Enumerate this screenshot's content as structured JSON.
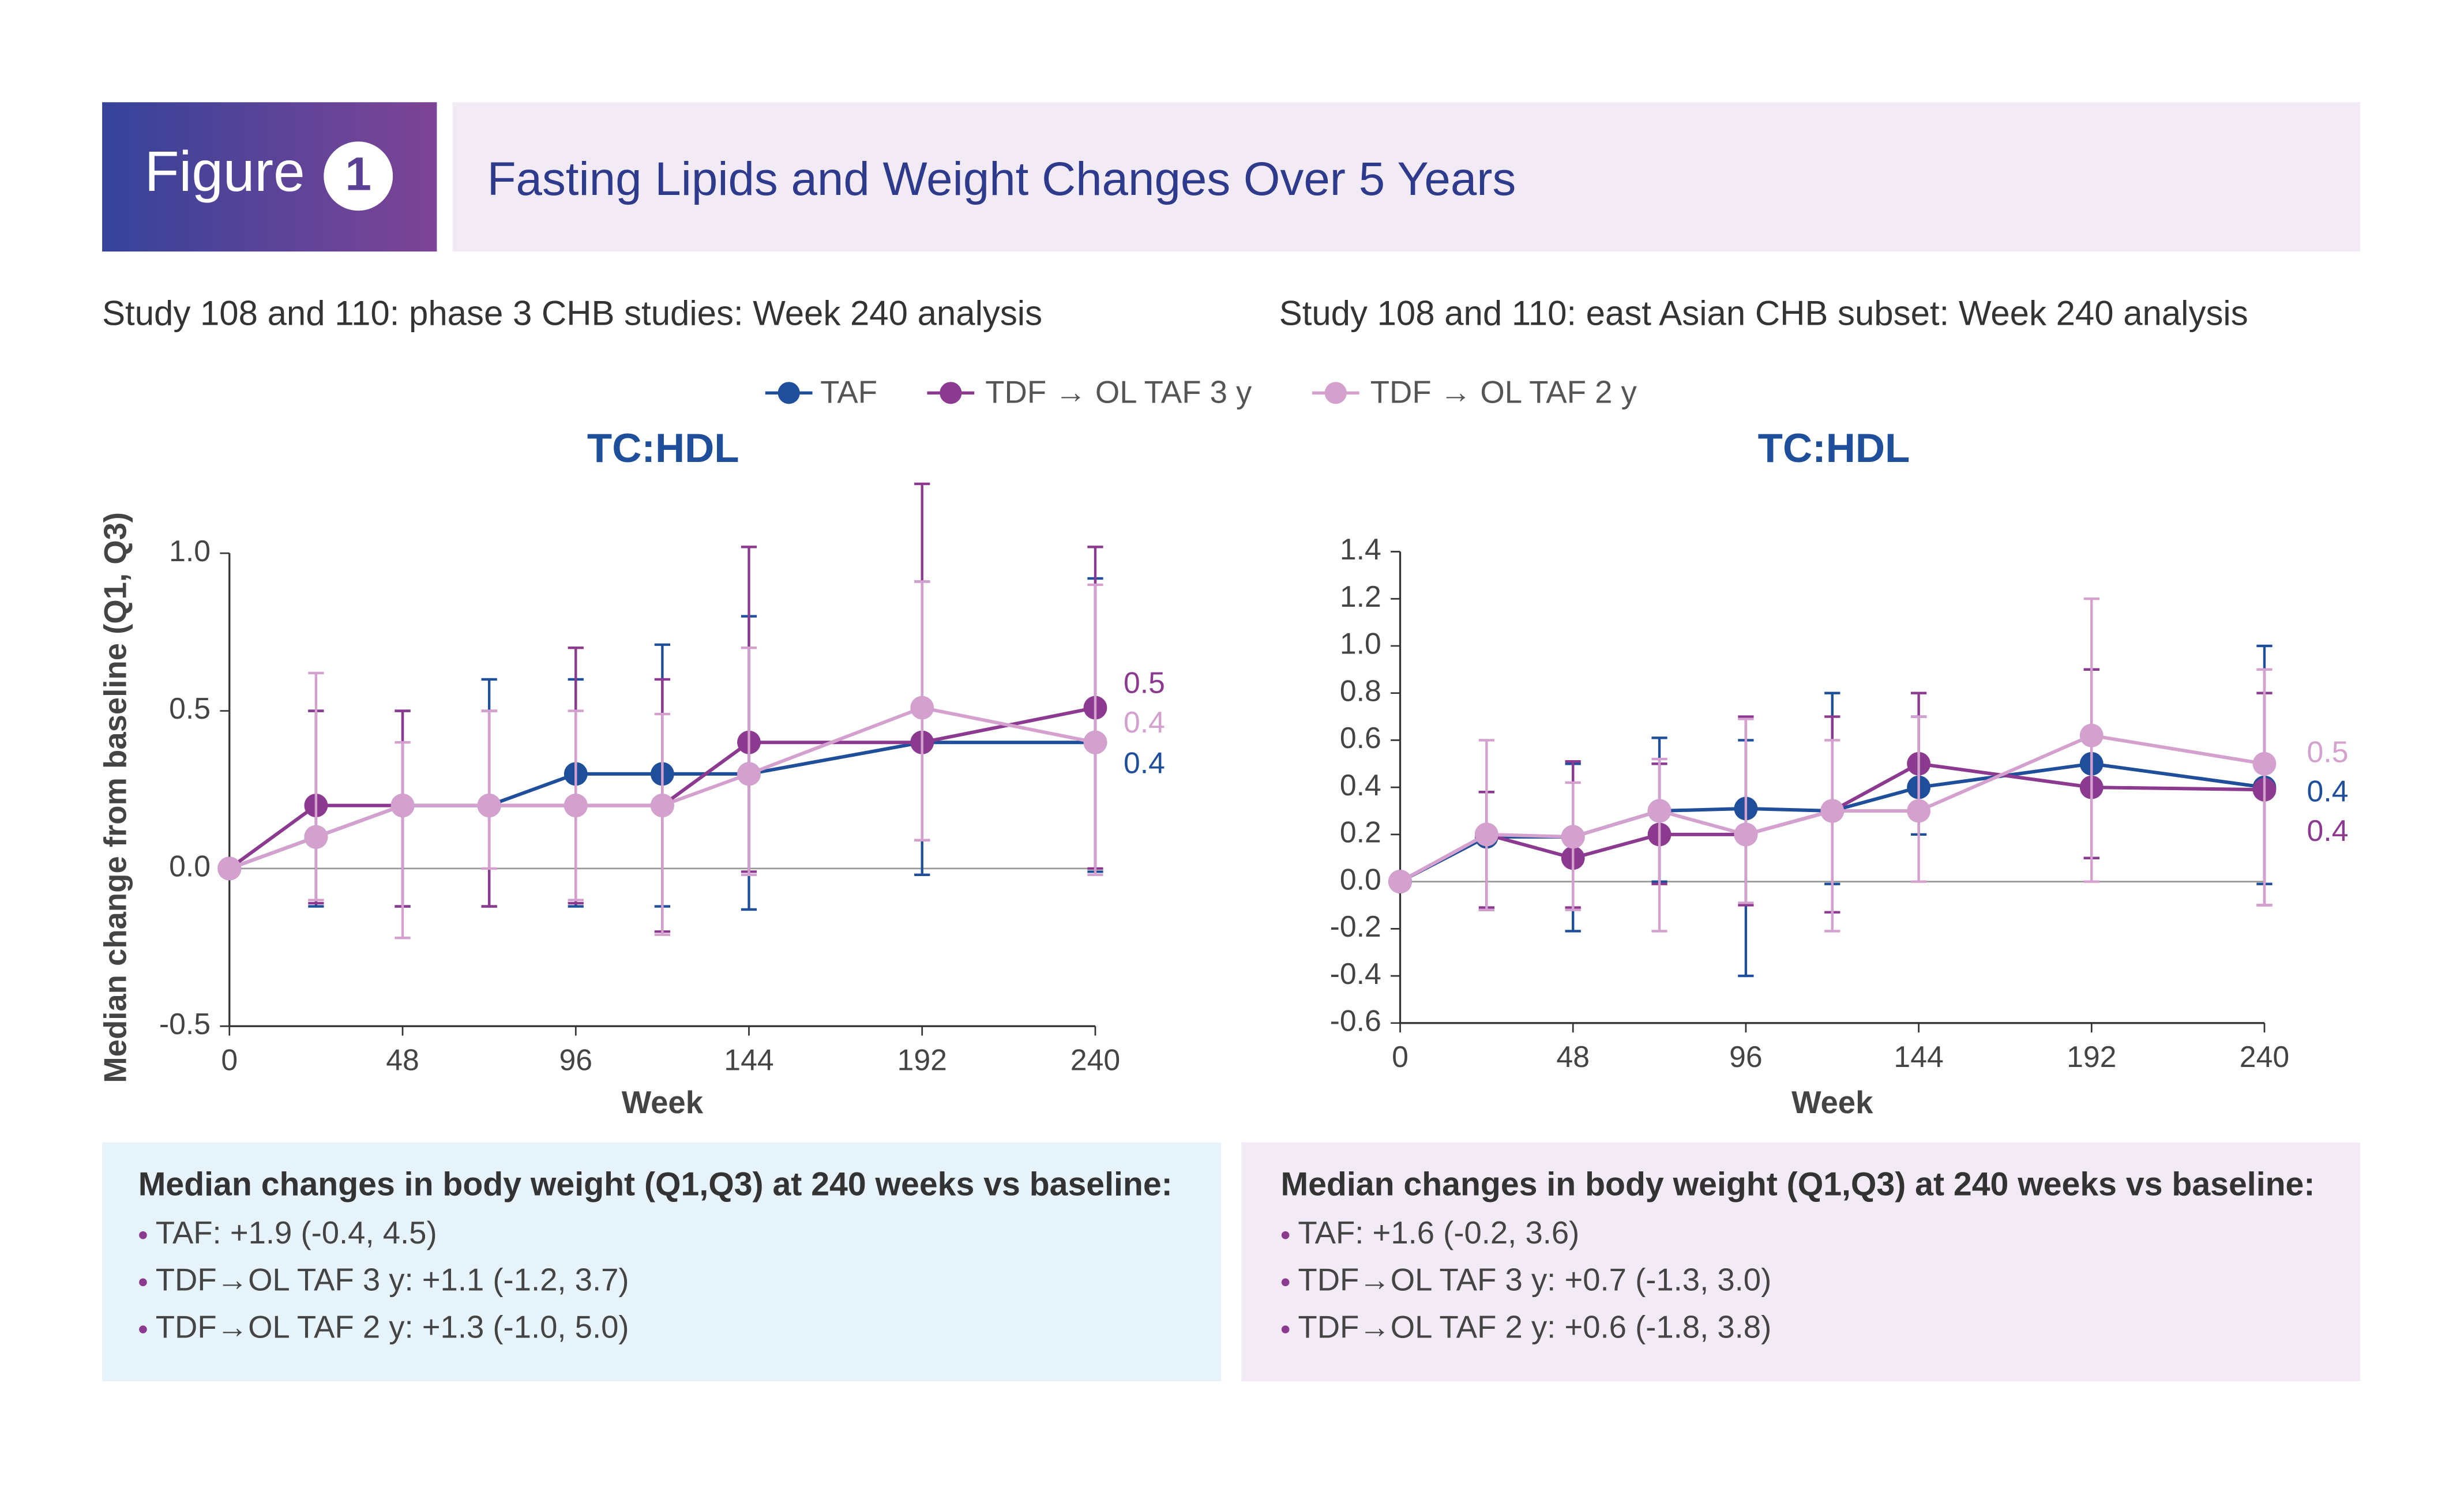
{
  "header": {
    "figure_label": "Figure",
    "figure_number": "1",
    "title": "Fasting Lipids and Weight Changes Over 5 Years"
  },
  "chart_data": [
    {
      "type": "line",
      "subtitle": "Study 108 and 110: phase 3 CHB studies: Week 240 analysis",
      "title": "TC:HDL",
      "x_label": "Week",
      "y_label": "Median change from baseline (Q1, Q3)",
      "x": [
        0,
        24,
        48,
        72,
        96,
        120,
        144,
        192,
        240
      ],
      "xlim": [
        0,
        240
      ],
      "xticks": [
        0,
        48,
        96,
        144,
        192,
        240
      ],
      "ylim": [
        -0.5,
        1.0
      ],
      "yticks": [
        -0.5,
        {
          "value": 0,
          "label": "0.0"
        },
        0.5,
        {
          "value": 1.0,
          "label": "1.0"
        }
      ],
      "series": [
        {
          "name": "TAF",
          "color": "#1f4e9a",
          "values": [
            0,
            0.1,
            0.2,
            0.2,
            0.3,
            0.3,
            0.3,
            0.4,
            0.4
          ],
          "lower": [
            null,
            -0.12,
            -0.12,
            -0.12,
            -0.12,
            -0.12,
            -0.13,
            -0.02,
            -0.01
          ],
          "upper": [
            null,
            0.5,
            0.5,
            0.6,
            0.6,
            0.71,
            0.8,
            0.91,
            0.92
          ],
          "value_labels": [
            null,
            null,
            null,
            null,
            null,
            null,
            null,
            null,
            "0.4"
          ]
        },
        {
          "name": "TDF → OL TAF 3 y",
          "color": "#8b3a8f",
          "values": [
            0,
            0.2,
            0.2,
            0.2,
            0.2,
            0.2,
            0.4,
            0.4,
            0.51
          ],
          "lower": [
            null,
            -0.11,
            -0.12,
            -0.12,
            -0.11,
            -0.2,
            -0.01,
            0.09,
            0
          ],
          "upper": [
            null,
            0.5,
            0.5,
            0.5,
            0.7,
            0.6,
            1.02,
            1.22,
            1.02
          ],
          "value_labels": [
            null,
            null,
            null,
            null,
            null,
            null,
            null,
            null,
            "0.5"
          ]
        },
        {
          "name": "TDF → OL TAF 2 y",
          "color": "#d4a1cf",
          "values": [
            0,
            0.1,
            0.2,
            0.2,
            0.2,
            0.2,
            0.3,
            0.51,
            0.4
          ],
          "lower": [
            null,
            -0.1,
            -0.22,
            0,
            -0.1,
            -0.21,
            -0.02,
            0.09,
            -0.02
          ],
          "upper": [
            null,
            0.62,
            0.4,
            0.5,
            0.5,
            0.49,
            0.7,
            0.91,
            0.9
          ],
          "value_labels": [
            null,
            null,
            null,
            null,
            null,
            null,
            null,
            null,
            "0.4"
          ]
        }
      ]
    },
    {
      "type": "line",
      "subtitle": "Study 108 and 110: east Asian CHB subset: Week 240 analysis",
      "title": "TC:HDL",
      "x_label": "Week",
      "x": [
        0,
        24,
        48,
        72,
        96,
        120,
        144,
        192,
        240
      ],
      "xlim": [
        0,
        240
      ],
      "xticks": [
        0,
        48,
        96,
        144,
        192,
        240
      ],
      "ylim": [
        -0.6,
        1.4
      ],
      "yticks": [
        -0.6,
        -0.4,
        -0.2,
        {
          "value": 0,
          "label": "0.0"
        },
        0.2,
        0.4,
        0.6,
        0.8,
        {
          "value": 1.0,
          "label": "1.0"
        },
        1.2,
        1.4
      ],
      "series": [
        {
          "color": "#1f4e9a",
          "values": [
            0,
            0.19,
            0.19,
            0.3,
            0.31,
            0.3,
            0.4,
            0.5,
            0.4
          ],
          "lower": [
            null,
            -0.12,
            -0.21,
            0,
            -0.4,
            -0.01,
            0.2,
            0.1,
            -0.01
          ],
          "upper": [
            null,
            0.38,
            0.5,
            0.61,
            0.6,
            0.8,
            0.7,
            0.9,
            1.0
          ],
          "value_labels": [
            null,
            null,
            null,
            null,
            null,
            null,
            null,
            null,
            "0.4"
          ]
        },
        {
          "color": "#8b3a8f",
          "values": [
            0,
            0.2,
            0.1,
            0.2,
            0.2,
            0.3,
            0.5,
            0.4,
            0.39
          ],
          "lower": [
            null,
            -0.11,
            -0.11,
            -0.01,
            -0.1,
            -0.13,
            0.3,
            0.1,
            -0.1
          ],
          "upper": [
            null,
            0.38,
            0.51,
            0.5,
            0.7,
            0.7,
            0.8,
            0.9,
            0.8
          ],
          "value_labels": [
            null,
            null,
            null,
            null,
            null,
            null,
            null,
            null,
            "0.4"
          ]
        },
        {
          "color": "#d4a1cf",
          "values": [
            0,
            0.2,
            0.19,
            0.3,
            0.2,
            0.3,
            0.3,
            0.62,
            0.5
          ],
          "lower": [
            null,
            -0.12,
            -0.12,
            -0.21,
            -0.09,
            -0.21,
            0,
            0,
            -0.1
          ],
          "upper": [
            null,
            0.6,
            0.42,
            0.52,
            0.69,
            0.6,
            0.7,
            1.2,
            0.9
          ],
          "value_labels": [
            null,
            null,
            null,
            null,
            null,
            null,
            null,
            null,
            "0.5"
          ]
        }
      ]
    }
  ],
  "weight_boxes": [
    {
      "heading": "Median changes in body weight (Q1,Q3) at 240 weeks vs baseline:",
      "items": [
        "TAF: +1.9 (-0.4, 4.5)",
        "TDF→OL TAF 3 y: +1.1 (-1.2, 3.7)",
        "TDF→OL TAF 2 y: +1.3 (-1.0, 5.0)"
      ]
    },
    {
      "heading": "Median changes in body weight (Q1,Q3) at 240 weeks vs baseline:",
      "items": [
        "TAF: +1.6 (-0.2, 3.6)",
        "TDF→OL TAF 3 y: +0.7 (-1.3, 3.0)",
        "TDF→OL TAF 2 y: +0.6 (-1.8, 3.8)"
      ]
    }
  ]
}
